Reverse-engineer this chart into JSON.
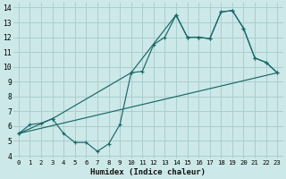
{
  "xlabel": "Humidex (Indice chaleur)",
  "bg_color": "#cce8e8",
  "grid_color": "#aacece",
  "line_color": "#1a6868",
  "xlim": [
    -0.5,
    23.5
  ],
  "ylim": [
    3.8,
    14.3
  ],
  "xticks": [
    0,
    1,
    2,
    3,
    4,
    5,
    6,
    7,
    8,
    9,
    10,
    11,
    12,
    13,
    14,
    15,
    16,
    17,
    18,
    19,
    20,
    21,
    22,
    23
  ],
  "yticks": [
    4,
    5,
    6,
    7,
    8,
    9,
    10,
    11,
    12,
    13,
    14
  ],
  "line1_x": [
    0,
    1,
    2,
    3,
    4,
    5,
    6,
    7,
    8,
    9,
    10,
    11,
    12,
    13,
    14,
    15,
    16,
    17,
    18,
    19,
    20,
    21,
    22,
    23
  ],
  "line1_y": [
    5.5,
    6.1,
    6.2,
    6.5,
    5.5,
    4.9,
    4.9,
    4.3,
    4.8,
    6.1,
    9.6,
    9.7,
    11.5,
    12.0,
    13.5,
    12.0,
    12.0,
    11.9,
    13.7,
    13.8,
    12.6,
    10.6,
    10.3,
    9.6
  ],
  "line2_x": [
    0,
    3,
    10,
    14,
    15,
    16,
    17,
    18,
    19,
    20,
    21,
    22,
    23
  ],
  "line2_y": [
    5.5,
    6.5,
    9.6,
    13.5,
    12.0,
    12.0,
    11.9,
    13.7,
    13.8,
    12.6,
    10.6,
    10.3,
    9.6
  ],
  "line3_x": [
    0,
    23
  ],
  "line3_y": [
    5.5,
    9.6
  ]
}
